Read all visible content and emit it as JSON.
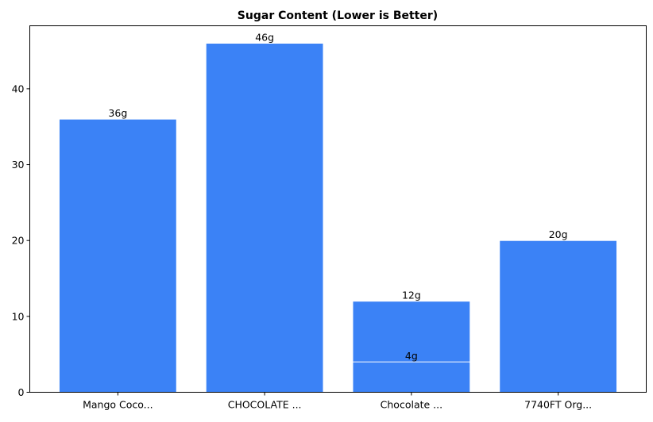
{
  "chart_data": {
    "type": "bar",
    "title": "Sugar Content (Lower is Better)",
    "xlabel": "",
    "ylabel": "",
    "tick_categories": [
      "Mango Coco...",
      "CHOCOLATE ...",
      "Chocolate ...",
      "7740FT Org..."
    ],
    "bars": [
      {
        "category": "Mango Coco...",
        "value": 36,
        "label": "36g"
      },
      {
        "category": "CHOCOLATE ...",
        "value": 46,
        "label": "46g"
      },
      {
        "category": "Chocolate ...",
        "value": 12,
        "label": "12g"
      },
      {
        "category": "Chocolate ...",
        "value": 4,
        "label": "4g"
      },
      {
        "category": "7740FT Org...",
        "value": 20,
        "label": "20g"
      }
    ],
    "ylim": [
      0,
      48.3
    ],
    "yticks": [
      0,
      10,
      20,
      30,
      40
    ],
    "grid": false,
    "bar_color": "#3b82f6",
    "bar_edge_color": "#ffffff"
  }
}
